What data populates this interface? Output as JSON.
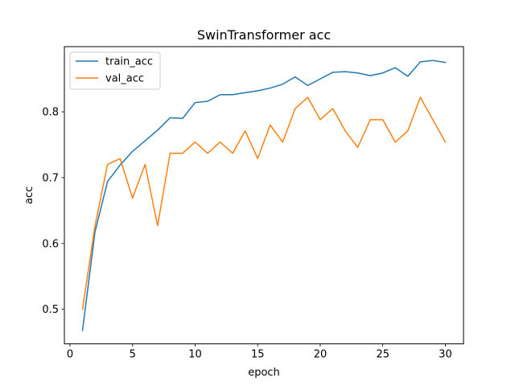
{
  "chart_data": {
    "type": "line",
    "title": "SwinTransformer acc",
    "xlabel": "epoch",
    "ylabel": "acc",
    "xlim": [
      -0.45,
      31.45
    ],
    "ylim": [
      0.4475,
      0.899
    ],
    "xticks": [
      0,
      5,
      10,
      15,
      20,
      25,
      30
    ],
    "yticks": [
      0.5,
      0.6,
      0.7,
      0.8
    ],
    "x": [
      1,
      2,
      3,
      4,
      5,
      6,
      7,
      8,
      9,
      10,
      11,
      12,
      13,
      14,
      15,
      16,
      17,
      18,
      19,
      20,
      21,
      22,
      23,
      24,
      25,
      26,
      27,
      28,
      29,
      30
    ],
    "series": [
      {
        "name": "train_acc",
        "color": "#1f77b4",
        "values": [
          0.468,
          0.618,
          0.694,
          0.719,
          0.74,
          0.756,
          0.772,
          0.791,
          0.79,
          0.814,
          0.816,
          0.826,
          0.826,
          0.829,
          0.832,
          0.836,
          0.842,
          0.853,
          0.84,
          0.85,
          0.86,
          0.861,
          0.859,
          0.855,
          0.859,
          0.867,
          0.854,
          0.876,
          0.878,
          0.875
        ]
      },
      {
        "name": "val_acc",
        "color": "#ff7f0e",
        "values": [
          0.5,
          0.627,
          0.72,
          0.729,
          0.669,
          0.72,
          0.627,
          0.737,
          0.737,
          0.754,
          0.737,
          0.754,
          0.737,
          0.771,
          0.729,
          0.78,
          0.754,
          0.805,
          0.822,
          0.788,
          0.805,
          0.771,
          0.746,
          0.788,
          0.788,
          0.754,
          0.771,
          0.822,
          0.788,
          0.754
        ]
      }
    ],
    "legend_position": "upper-left",
    "grid": false
  }
}
